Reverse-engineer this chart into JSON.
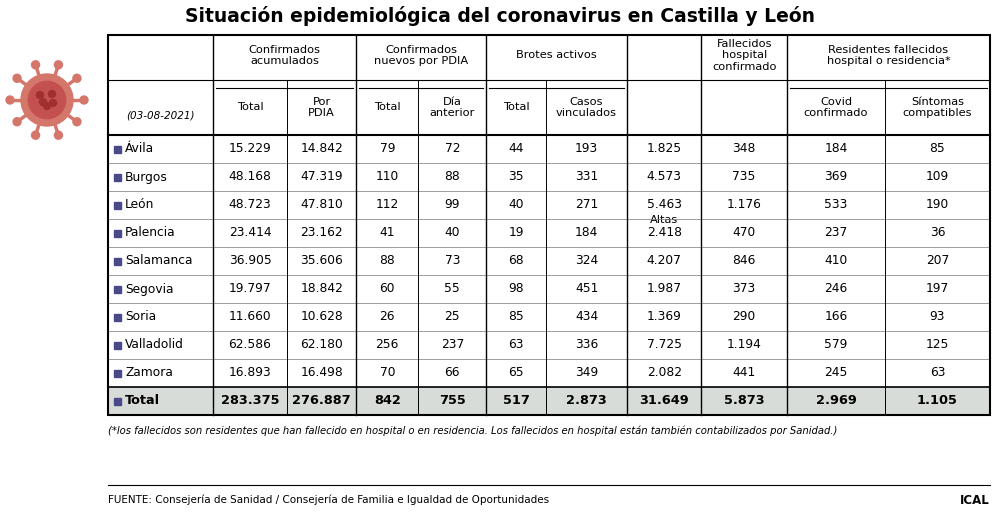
{
  "title": "Situación epidemiológica del coronavirus en Castilla y León",
  "date": "(03-08-2021)",
  "provinces": [
    "Ávila",
    "Burgos",
    "León",
    "Palencia",
    "Salamanca",
    "Segovia",
    "Soria",
    "Valladolid",
    "Zamora"
  ],
  "data": {
    "Ávila": [
      "15.229",
      "14.842",
      "79",
      "72",
      "44",
      "193",
      "1.825",
      "348",
      "184",
      "85"
    ],
    "Burgos": [
      "48.168",
      "47.319",
      "110",
      "88",
      "35",
      "331",
      "4.573",
      "735",
      "369",
      "109"
    ],
    "León": [
      "48.723",
      "47.810",
      "112",
      "99",
      "40",
      "271",
      "5.463",
      "1.176",
      "533",
      "190"
    ],
    "Palencia": [
      "23.414",
      "23.162",
      "41",
      "40",
      "19",
      "184",
      "2.418",
      "470",
      "237",
      "36"
    ],
    "Salamanca": [
      "36.905",
      "35.606",
      "88",
      "73",
      "68",
      "324",
      "4.207",
      "846",
      "410",
      "207"
    ],
    "Segovia": [
      "19.797",
      "18.842",
      "60",
      "55",
      "98",
      "451",
      "1.987",
      "373",
      "246",
      "197"
    ],
    "Soria": [
      "11.660",
      "10.628",
      "26",
      "25",
      "85",
      "434",
      "1.369",
      "290",
      "166",
      "93"
    ],
    "Valladolid": [
      "62.586",
      "62.180",
      "256",
      "237",
      "63",
      "336",
      "7.725",
      "1.194",
      "579",
      "125"
    ],
    "Zamora": [
      "16.893",
      "16.498",
      "70",
      "66",
      "65",
      "349",
      "2.082",
      "441",
      "245",
      "63"
    ]
  },
  "total_row": [
    "283.375",
    "276.887",
    "842",
    "755",
    "517",
    "2.873",
    "31.649",
    "5.873",
    "2.969",
    "1.105"
  ],
  "footnote": "(*los fallecidos son residentes que han fallecido en hospital o en residencia. Los fallecidos en hospital están también contabilizados por Sanidad.)",
  "source": "FUENTE: Consejería de Sanidad / Consejería de Familia e Igualdad de Oportunidades",
  "source_right": "ICAL",
  "square_color": "#4a4a8a",
  "total_bg": "#d8dcd8",
  "bg_color": "#FFFFFF",
  "title_fontsize": 13.5,
  "header_fontsize": 8.2,
  "data_fontsize": 8.8,
  "footnote_fontsize": 7.2,
  "source_fontsize": 7.5,
  "virus_color_outer": "#d4776a",
  "virus_color_inner": "#c45050",
  "virus_dots": "#b03030"
}
